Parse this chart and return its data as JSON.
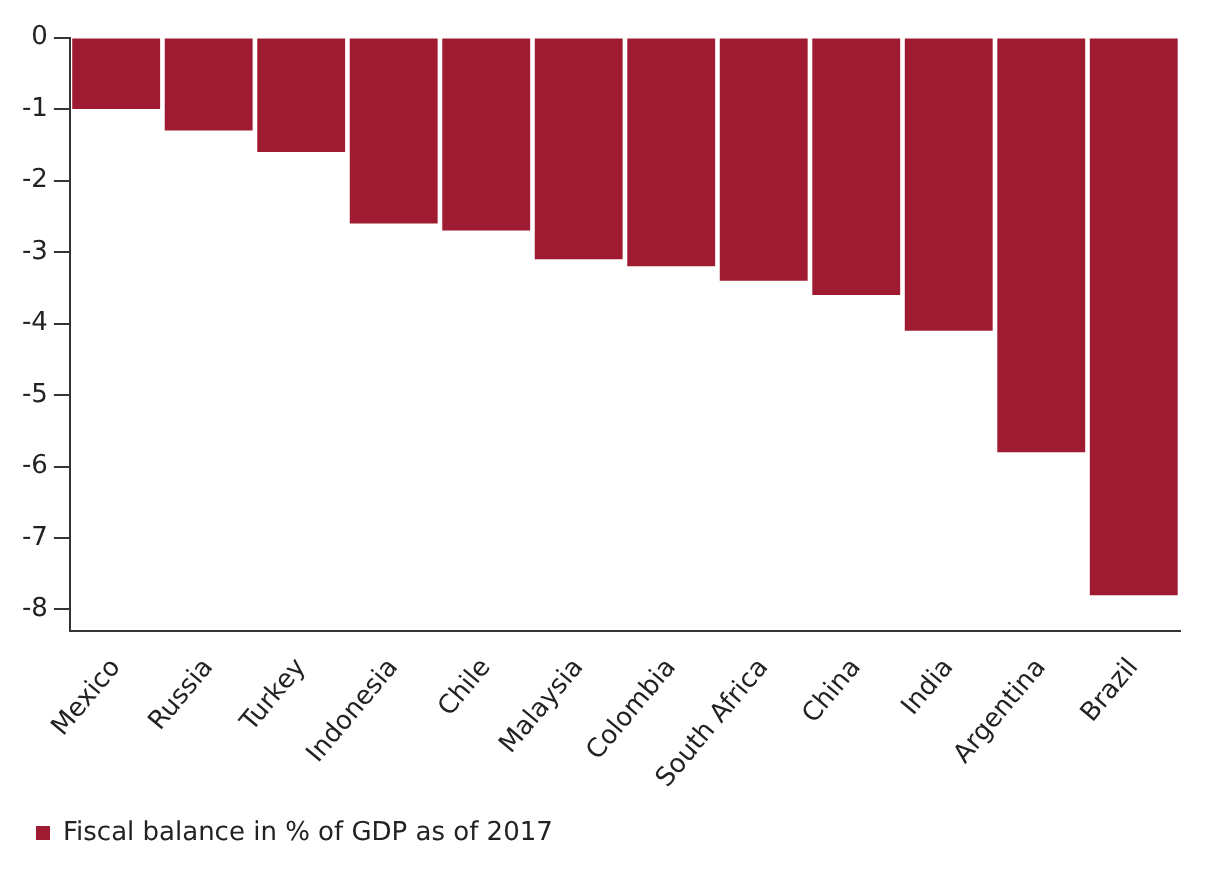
{
  "chart_data": {
    "type": "bar",
    "categories": [
      "Mexico",
      "Russia",
      "Turkey",
      "Indonesia",
      "Chile",
      "Malaysia",
      "Colombia",
      "South Africa",
      "China",
      "India",
      "Argentina",
      "Brazil"
    ],
    "series": [
      {
        "name": "Fiscal balance in % of GDP as of 2017",
        "color": "#9e1b32",
        "values": [
          -1.0,
          -1.3,
          -1.6,
          -2.6,
          -2.7,
          -3.1,
          -3.2,
          -3.4,
          -3.6,
          -4.1,
          -5.8,
          -7.8
        ]
      }
    ],
    "ylim": [
      -8.3,
      0
    ],
    "yticks": [
      0,
      -1,
      -2,
      -3,
      -4,
      -5,
      -6,
      -7,
      -8
    ],
    "grid": false,
    "legend": "bottom"
  }
}
